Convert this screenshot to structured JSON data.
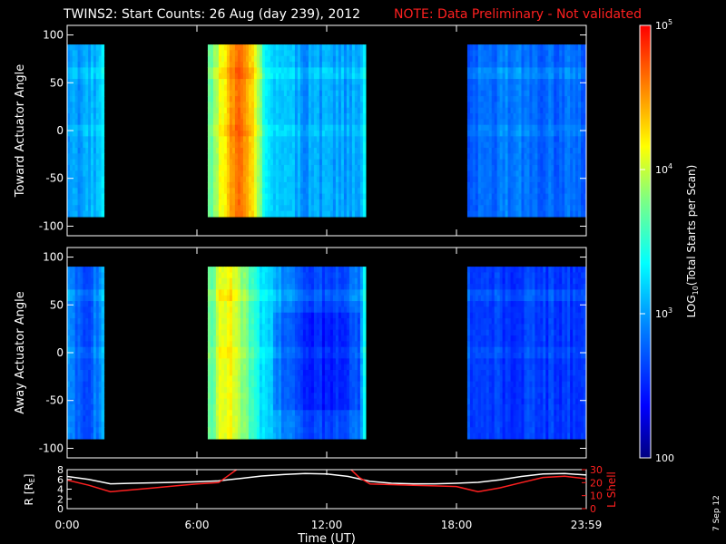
{
  "title": "TWINS2: Start Counts: 26 Aug (day 239), 2012",
  "note": "NOTE: Data Preliminary - Not validated",
  "date_stamp": "7 Sep 12",
  "colors": {
    "background": "#000000",
    "axes": "#ffffff",
    "note": "#ff2020",
    "r_line": "#ffffff",
    "l_shell_line": "#ff2020"
  },
  "chart_data": [
    {
      "type": "heatmap",
      "ylabel": "Toward Actuator Angle",
      "ylim": [
        -110,
        110
      ],
      "yticks": [
        -100,
        -50,
        0,
        50,
        100
      ],
      "x_range_hours": [
        0,
        24
      ],
      "data_intervals_hours": [
        [
          0,
          1.7
        ],
        [
          6.5,
          13.8
        ],
        [
          18.5,
          24
        ]
      ],
      "profile": {
        "hours": [
          0.0,
          0.5,
          1.0,
          1.5,
          1.7,
          6.5,
          7.0,
          7.5,
          8.0,
          8.5,
          9.0,
          9.5,
          10.0,
          11.0,
          12.0,
          13.0,
          13.5,
          13.8,
          18.5,
          19.5,
          20.5,
          21.5,
          22.5,
          23.5,
          24.0
        ],
        "log10_counts": [
          3.1,
          3.0,
          3.0,
          3.1,
          3.2,
          3.6,
          4.0,
          4.5,
          4.6,
          4.3,
          3.6,
          3.2,
          3.1,
          3.0,
          3.0,
          3.0,
          3.1,
          3.3,
          2.8,
          2.8,
          2.9,
          2.8,
          2.8,
          2.8,
          2.8
        ]
      }
    },
    {
      "type": "heatmap",
      "ylabel": "Away Actuator Angle",
      "ylim": [
        -110,
        110
      ],
      "yticks": [
        -100,
        -50,
        0,
        50,
        100
      ],
      "x_range_hours": [
        0,
        24
      ],
      "data_intervals_hours": [
        [
          0,
          1.7
        ],
        [
          6.5,
          13.8
        ],
        [
          18.5,
          24
        ]
      ],
      "profile": {
        "hours": [
          0.0,
          0.5,
          1.0,
          1.5,
          1.7,
          6.5,
          7.0,
          7.5,
          8.0,
          8.5,
          9.0,
          9.5,
          10.0,
          11.0,
          12.0,
          13.0,
          13.5,
          13.8,
          18.5,
          19.5,
          20.5,
          21.5,
          22.5,
          23.5,
          24.0
        ],
        "log10_counts": [
          3.0,
          2.8,
          2.7,
          2.9,
          3.1,
          3.6,
          4.0,
          4.2,
          3.9,
          3.6,
          3.3,
          3.1,
          2.9,
          2.7,
          2.6,
          2.7,
          2.9,
          3.4,
          2.7,
          2.6,
          2.6,
          2.6,
          2.6,
          2.6,
          2.6
        ]
      }
    },
    {
      "type": "line",
      "ylabel_left": "R [R_E]",
      "ylabel_right": "L Shell",
      "xlabel": "Time (UT)",
      "x_ticks": [
        "0:00",
        "6:00",
        "12:00",
        "18:00",
        "23:59"
      ],
      "x_tick_hours": [
        0,
        6,
        12,
        18,
        24
      ],
      "ylim_left": [
        0,
        8
      ],
      "yticks_left": [
        0,
        2,
        4,
        6,
        8
      ],
      "ylim_right": [
        0,
        30
      ],
      "yticks_right": [
        0,
        10,
        20,
        30
      ],
      "series": [
        {
          "name": "R",
          "axis": "left",
          "x": [
            0,
            1,
            2,
            3,
            4,
            5,
            6,
            7,
            8,
            9,
            10,
            11,
            12,
            13,
            14,
            15,
            16,
            17,
            18,
            19,
            20,
            21,
            22,
            23,
            24
          ],
          "y": [
            6.6,
            6.0,
            5.1,
            5.2,
            5.3,
            5.4,
            5.5,
            5.7,
            6.2,
            6.7,
            7.0,
            7.2,
            7.1,
            6.6,
            5.6,
            5.2,
            5.1,
            5.1,
            5.2,
            5.4,
            5.9,
            6.6,
            7.1,
            7.2,
            6.9
          ]
        },
        {
          "name": "L Shell",
          "axis": "right",
          "x": [
            0,
            1,
            2,
            3,
            4,
            5,
            6,
            7,
            7.5,
            8,
            13,
            13.5,
            14,
            15,
            16,
            17,
            18,
            19,
            20,
            21,
            22,
            23,
            24
          ],
          "y": [
            22,
            18,
            13,
            14.5,
            16,
            17.5,
            19,
            20,
            26,
            32,
            32,
            24,
            19,
            18.5,
            18,
            17.5,
            17,
            13,
            16,
            20,
            24,
            25,
            23
          ]
        }
      ]
    },
    {
      "type": "heatmap-colorbar",
      "label": "LOG10(Total Starts per Scan)",
      "label_parts": [
        "LOG",
        "10",
        "(Total Starts per Scan)"
      ],
      "range_log10": [
        2,
        5
      ],
      "ticks": [
        {
          "base": "10",
          "exp": "5",
          "log": 5
        },
        {
          "base": "10",
          "exp": "4",
          "log": 4
        },
        {
          "base": "10",
          "exp": "3",
          "log": 3
        },
        {
          "base": "100",
          "exp": "",
          "log": 2
        }
      ]
    }
  ]
}
